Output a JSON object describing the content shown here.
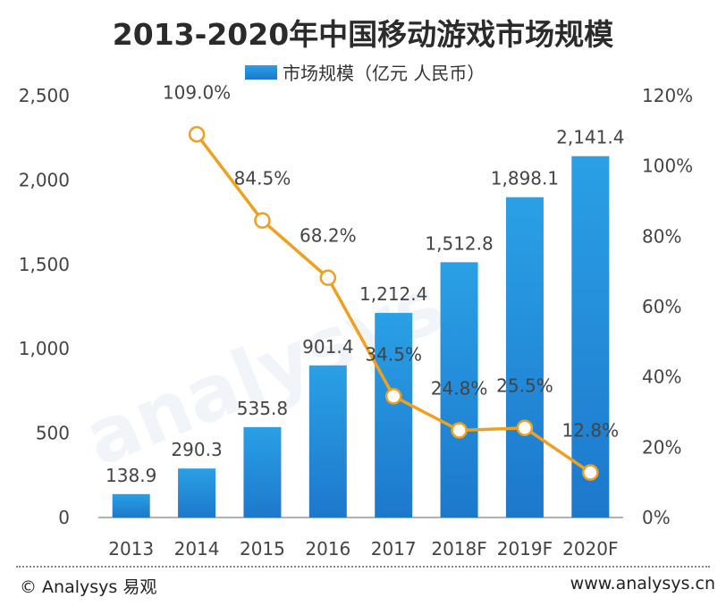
{
  "chart_data": {
    "type": "bar",
    "title": "2013-2020年中国移动游戏市场规模",
    "categories": [
      "2013",
      "2014",
      "2015",
      "2016",
      "2017",
      "2018F",
      "2019F",
      "2020F"
    ],
    "series": [
      {
        "name": "市场规模（亿元 人民币）",
        "type": "bar",
        "axis": "left",
        "values": [
          138.9,
          290.3,
          535.8,
          901.4,
          1212.4,
          1512.8,
          1898.1,
          2141.4
        ],
        "labels": [
          "138.9",
          "290.3",
          "535.8",
          "901.4",
          "1,212.4",
          "1,512.8",
          "1,898.1",
          "2,141.4"
        ]
      },
      {
        "type": "line",
        "axis": "right",
        "values": [
          null,
          109.0,
          84.5,
          68.2,
          34.5,
          24.8,
          25.5,
          12.8
        ],
        "labels": [
          null,
          "109.0%",
          "84.5%",
          "68.2%",
          "34.5%",
          "24.8%",
          "25.5%",
          "12.8%"
        ]
      }
    ],
    "y_left": {
      "range": [
        0,
        2500
      ],
      "ticks": [
        "0",
        "500",
        "1,000",
        "1,500",
        "2,000",
        "2,500"
      ]
    },
    "y_right": {
      "range": [
        0,
        120
      ],
      "ticks": [
        "0%",
        "20%",
        "40%",
        "60%",
        "80%",
        "100%",
        "120%"
      ]
    },
    "grid": false,
    "legend": "top-center",
    "colors": {
      "bar_top": "#2aa0e6",
      "bar_bottom": "#1d78cc",
      "line": "#f0a01e",
      "marker_fill": "#ffffff"
    }
  },
  "footer": {
    "left": "© Analysys 易观",
    "right": "www.analysys.cn"
  }
}
